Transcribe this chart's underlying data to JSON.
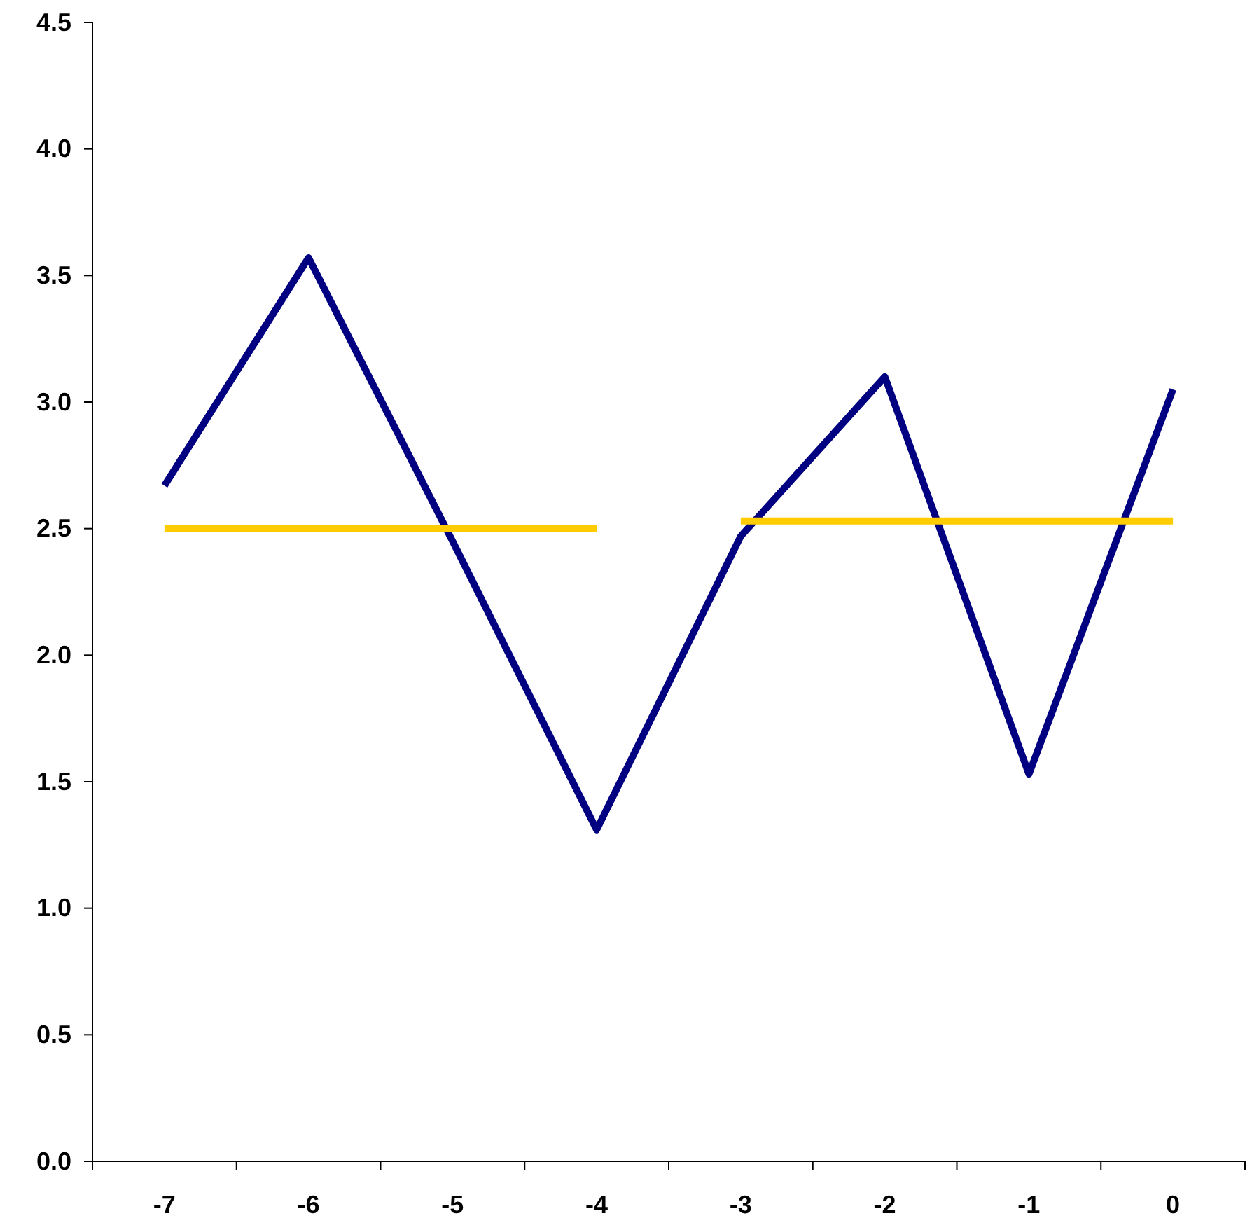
{
  "chart_data": {
    "type": "line",
    "categories": [
      "-7",
      "-6",
      "-5",
      "-4",
      "-3",
      "-2",
      "-1",
      "0"
    ],
    "series": [
      {
        "color": "#000080",
        "values": [
          2.67,
          3.57,
          2.45,
          1.31,
          2.47,
          3.1,
          1.53,
          3.05
        ]
      },
      {
        "color": "#ffcc00",
        "values": [
          2.5,
          2.5,
          2.5,
          2.5,
          null,
          null,
          null,
          null
        ]
      },
      {
        "color": "#ffcc00",
        "values": [
          null,
          null,
          null,
          null,
          2.53,
          2.53,
          2.53,
          2.53
        ]
      }
    ],
    "ylim": [
      0,
      4.5
    ],
    "yticks": [
      {
        "value": 0,
        "label": "0.0"
      },
      {
        "value": 0.5,
        "label": "0.5"
      },
      {
        "value": 1,
        "label": "1.0"
      },
      {
        "value": 1.5,
        "label": "1.5"
      },
      {
        "value": 2,
        "label": "2.0"
      },
      {
        "value": 2.5,
        "label": "2.5"
      },
      {
        "value": 3,
        "label": "3.0"
      },
      {
        "value": 3.5,
        "label": "3.5"
      },
      {
        "value": 4,
        "label": "4.0"
      },
      {
        "value": 4.5,
        "label": "4.5"
      }
    ],
    "grid": false,
    "marker": "none",
    "line_style": "solid"
  }
}
